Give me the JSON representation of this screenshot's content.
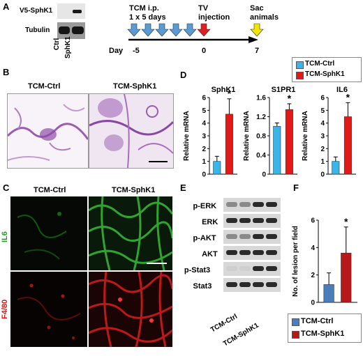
{
  "panels": {
    "A": {
      "letter": "A",
      "blot_rows": [
        "V5-SphK1",
        "Tubulin"
      ],
      "lanes": [
        "Ctrl",
        "SphK1"
      ],
      "timeline": {
        "tcm_label_line1": "TCM i.p.",
        "tcm_label_line2": "1 x 5 days",
        "tv_label_line1": "TV",
        "tv_label_line2": "injection",
        "sac_label_line1": "Sac",
        "sac_label_line2": "animals",
        "day_label": "Day",
        "ticks": [
          "-5",
          "0",
          "7"
        ],
        "tcm_arrow_count": 5,
        "tv_arrow_color": "#e02020",
        "sac_arrow_color": "#f5e400",
        "tcm_arrow_color": "#5b9bd5"
      }
    },
    "B": {
      "letter": "B",
      "titles": [
        "TCM-Ctrl",
        "TCM-SphK1"
      ]
    },
    "C": {
      "letter": "C",
      "titles": [
        "TCM-Ctrl",
        "TCM-SphK1"
      ],
      "row_labels": [
        "IL6",
        "F4/80"
      ],
      "row_colors": [
        "#1aa31a",
        "#e01010"
      ]
    },
    "D": {
      "letter": "D",
      "legend": [
        "TCM-Ctrl",
        "TCM-SphK1"
      ],
      "colors": {
        "ctrl": "#3bb4e8",
        "sphk1": "#e01919"
      }
    },
    "E": {
      "letter": "E",
      "rows": [
        "p-ERK",
        "ERK",
        "p-AKT",
        "AKT",
        "p-Stat3",
        "Stat3"
      ],
      "groups": [
        "TCM-Ctrl",
        "TCM-SphK1"
      ]
    },
    "F": {
      "letter": "F",
      "legend": [
        "TCM-Ctrl",
        "TCM-SphK1"
      ],
      "colors": {
        "ctrl": "#4a7ebb",
        "sphk1": "#b81818"
      }
    }
  },
  "chart_data": [
    {
      "type": "bar",
      "title": "SphK1",
      "ylabel": "Relative mRNA",
      "categories": [
        "TCM-Ctrl",
        "TCM-SphK1"
      ],
      "values": [
        1.0,
        4.7
      ],
      "errors": [
        0.4,
        1.2
      ],
      "ylim": [
        0,
        6
      ],
      "yticks": [
        "0",
        "1",
        "2",
        "3",
        "4",
        "5",
        "6"
      ],
      "significance": "*"
    },
    {
      "type": "bar",
      "title": "S1PR1",
      "ylabel": "Relative mRNA",
      "categories": [
        "TCM-Ctrl",
        "TCM-SphK1"
      ],
      "values": [
        1.0,
        1.35
      ],
      "errors": [
        0.07,
        0.12
      ],
      "ylim": [
        0,
        1.6
      ],
      "yticks": [
        "0",
        "0.4",
        "0.8",
        "1.2",
        "1.6"
      ],
      "significance": "*"
    },
    {
      "type": "bar",
      "title": "IL6",
      "ylabel": "Relative mRNA",
      "categories": [
        "TCM-Ctrl",
        "TCM-SphK1"
      ],
      "values": [
        1.0,
        4.5
      ],
      "errors": [
        0.35,
        1.1
      ],
      "ylim": [
        0,
        6
      ],
      "yticks": [
        "0",
        "1",
        "2",
        "3",
        "4",
        "5",
        "6"
      ],
      "significance": "*"
    },
    {
      "type": "bar",
      "title": "",
      "ylabel": "No. of lesion per field",
      "categories": [
        "TCM-Ctrl",
        "TCM-SphK1"
      ],
      "values": [
        1.3,
        3.6
      ],
      "errors": [
        0.85,
        1.9
      ],
      "ylim": [
        0,
        6
      ],
      "yticks": [
        "0",
        "2",
        "4",
        "6"
      ],
      "significance": "*"
    }
  ]
}
